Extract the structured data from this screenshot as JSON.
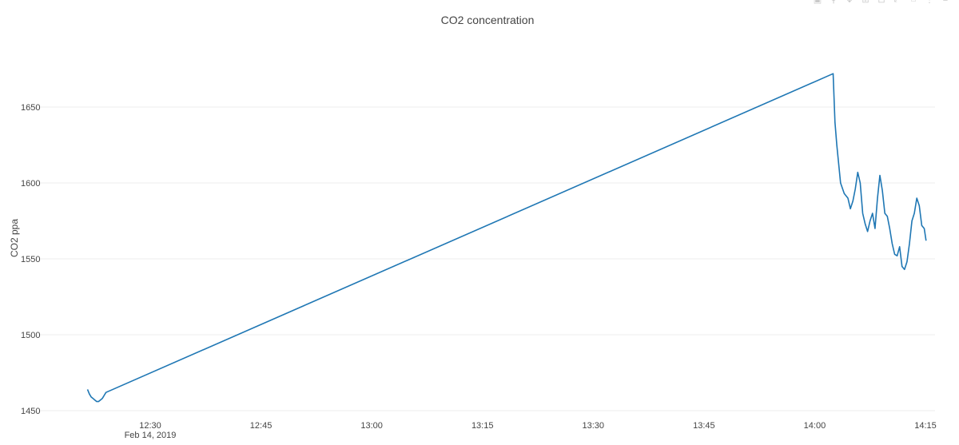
{
  "chart_data": {
    "type": "line",
    "title": "CO2 concentration",
    "xlabel": "",
    "ylabel": "CO2 ppa",
    "x_tick_labels": [
      "12:30",
      "12:45",
      "13:00",
      "13:15",
      "13:30",
      "13:45",
      "14:00",
      "14:15"
    ],
    "x_tick_sublabel": "Feb 14, 2019",
    "y_ticks": [
      1450,
      1500,
      1550,
      1600,
      1650
    ],
    "ylim": [
      1450,
      1680
    ],
    "grid": true,
    "series": [
      {
        "color": "#1f77b4",
        "x": [
          "12:21:30",
          "12:21:45",
          "12:22:00",
          "12:22:15",
          "12:22:30",
          "12:22:45",
          "12:23:00",
          "12:23:15",
          "12:23:30",
          "12:23:45",
          "12:24:00",
          "14:02:30",
          "14:02:45",
          "14:03:00",
          "14:03:30",
          "14:04:00",
          "14:04:30",
          "14:04:50",
          "14:05:10",
          "14:05:30",
          "14:05:50",
          "14:06:10",
          "14:06:30",
          "14:06:50",
          "14:07:10",
          "14:07:30",
          "14:07:50",
          "14:08:10",
          "14:08:30",
          "14:08:50",
          "14:09:10",
          "14:09:30",
          "14:09:50",
          "14:10:10",
          "14:10:30",
          "14:10:50",
          "14:11:10",
          "14:11:30",
          "14:11:50",
          "14:12:10",
          "14:12:30",
          "14:12:50",
          "14:13:10",
          "14:13:30",
          "14:13:50",
          "14:14:10",
          "14:14:30",
          "14:14:50",
          "14:15:05"
        ],
        "y": [
          1464,
          1461,
          1459,
          1458,
          1457,
          1456,
          1456,
          1457,
          1458,
          1460,
          1462,
          1672,
          1640,
          1625,
          1600,
          1593,
          1590,
          1583,
          1588,
          1596,
          1607,
          1600,
          1580,
          1573,
          1568,
          1575,
          1580,
          1570,
          1590,
          1605,
          1595,
          1580,
          1578,
          1570,
          1560,
          1553,
          1552,
          1558,
          1545,
          1543,
          1548,
          1560,
          1575,
          1580,
          1590,
          1585,
          1572,
          1570,
          1562
        ]
      }
    ]
  },
  "modebar": {
    "icons": [
      "camera-icon",
      "zoom-icon",
      "pan-icon",
      "zoom-in-icon",
      "zoom-out-icon",
      "autoscale-icon",
      "home-icon",
      "spike-icon",
      "compare-icon"
    ]
  }
}
